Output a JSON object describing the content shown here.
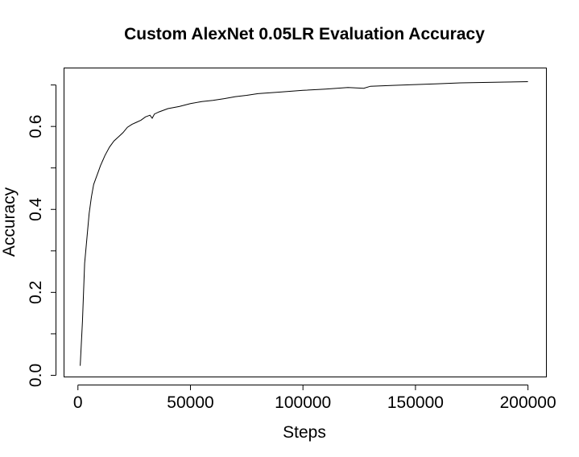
{
  "chart_data": {
    "type": "line",
    "title": "Custom AlexNet 0.05LR Evaluation Accuracy",
    "xlabel": "Steps",
    "ylabel": "Accuracy",
    "xlim": [
      -6000,
      208000
    ],
    "ylim": [
      -0.003,
      0.74
    ],
    "x_ticks": [
      {
        "value": 0,
        "label": "0"
      },
      {
        "value": 50000,
        "label": "50000"
      },
      {
        "value": 100000,
        "label": "100000"
      },
      {
        "value": 150000,
        "label": "150000"
      },
      {
        "value": 200000,
        "label": "200000"
      }
    ],
    "y_ticks": [
      {
        "value": 0.0,
        "label": "0.0"
      },
      {
        "value": 0.1,
        "label": ""
      },
      {
        "value": 0.2,
        "label": "0.2"
      },
      {
        "value": 0.3,
        "label": ""
      },
      {
        "value": 0.4,
        "label": "0.4"
      },
      {
        "value": 0.5,
        "label": ""
      },
      {
        "value": 0.6,
        "label": "0.6"
      },
      {
        "value": 0.7,
        "label": ""
      }
    ],
    "series": [
      {
        "name": "Accuracy",
        "x": [
          1000,
          2000,
          3000,
          4000,
          5000,
          6000,
          7000,
          8000,
          9000,
          10000,
          12000,
          14000,
          16000,
          18000,
          20000,
          22000,
          24000,
          26000,
          28000,
          30000,
          32000,
          33000,
          34000,
          36000,
          40000,
          45000,
          50000,
          55000,
          60000,
          65000,
          70000,
          75000,
          80000,
          90000,
          100000,
          110000,
          120000,
          127000,
          130000,
          140000,
          150000,
          160000,
          170000,
          180000,
          190000,
          200000
        ],
        "values": [
          0.023,
          0.13,
          0.27,
          0.33,
          0.39,
          0.43,
          0.46,
          0.475,
          0.49,
          0.505,
          0.53,
          0.55,
          0.565,
          0.575,
          0.585,
          0.598,
          0.605,
          0.61,
          0.615,
          0.623,
          0.627,
          0.62,
          0.63,
          0.635,
          0.643,
          0.648,
          0.655,
          0.66,
          0.663,
          0.667,
          0.672,
          0.675,
          0.679,
          0.683,
          0.687,
          0.69,
          0.694,
          0.692,
          0.697,
          0.699,
          0.701,
          0.703,
          0.705,
          0.706,
          0.707,
          0.708
        ]
      }
    ]
  }
}
